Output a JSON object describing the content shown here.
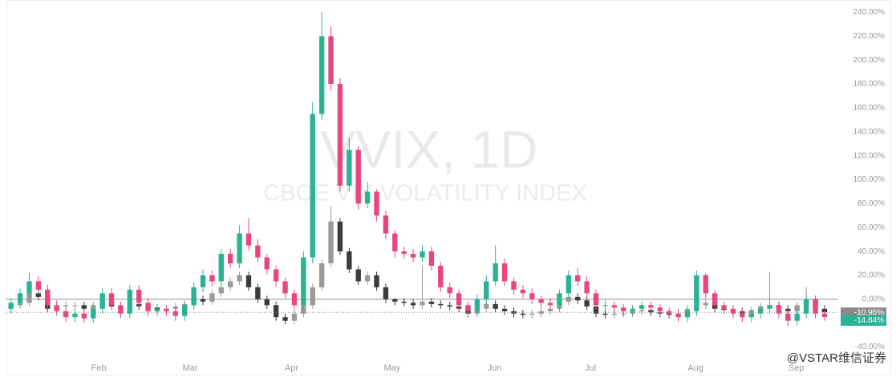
{
  "chart_data": {
    "type": "candlestick",
    "title": "VVIX, 1D",
    "subtitle": "CBOE VIX VOLATILITY INDEX",
    "watermark": "@VSTAR维信证券",
    "ylim": [
      -51,
      247
    ],
    "xlim": [
      -0.5,
      90.5
    ],
    "baseline": 0,
    "yticks": [
      {
        "value": -40,
        "label": "-40.00%"
      },
      {
        "value": -20,
        "label": "-20.00%"
      },
      {
        "value": 0,
        "label": "0.00%"
      },
      {
        "value": 20,
        "label": "20.00%"
      },
      {
        "value": 40,
        "label": "40.00%"
      },
      {
        "value": 60,
        "label": "60.00%"
      },
      {
        "value": 80,
        "label": "80.00%"
      },
      {
        "value": 100,
        "label": "100.00%"
      },
      {
        "value": 120,
        "label": "120.00%"
      },
      {
        "value": 140,
        "label": "140.00%"
      },
      {
        "value": 160,
        "label": "160.00%"
      },
      {
        "value": 180,
        "label": "180.00%"
      },
      {
        "value": 200,
        "label": "200.00%"
      },
      {
        "value": 220,
        "label": "220.00%"
      },
      {
        "value": 240,
        "label": "240.00%"
      }
    ],
    "xticks": [
      {
        "value": 9.6,
        "label": "Feb"
      },
      {
        "value": 19.6,
        "label": "Mar"
      },
      {
        "value": 30.7,
        "label": "Apr"
      },
      {
        "value": 41.7,
        "label": "May"
      },
      {
        "value": 52.9,
        "label": "Jun"
      },
      {
        "value": 63.4,
        "label": "Jul"
      },
      {
        "value": 74.9,
        "label": "Aug"
      },
      {
        "value": 85.9,
        "label": "Sep"
      }
    ],
    "series": [
      {
        "up_color": "#9a9a9a",
        "down_color": "#3b3b3b",
        "label_color": "#8a8a8a",
        "last_label": "-10.96%",
        "open": [
          -8,
          -5,
          -3,
          5,
          2,
          -8,
          -6,
          -5,
          -5,
          -8,
          -5,
          -2,
          -6,
          -8,
          -4,
          -6,
          -7,
          -10,
          -8,
          -6,
          -4,
          0,
          -2,
          5,
          10,
          15,
          20,
          10,
          0,
          -5,
          -15,
          -18,
          -12,
          -5,
          10,
          30,
          65,
          40,
          25,
          15,
          20,
          10,
          0,
          -2,
          -3,
          -5,
          -2,
          -4,
          -5,
          -6,
          -8,
          -12,
          -8,
          -4,
          -8,
          -10,
          -12,
          -13,
          -12,
          -10,
          -8,
          -2,
          2,
          -1,
          -6,
          -12,
          -13,
          -12,
          -12,
          -10,
          -9,
          -11,
          -12,
          -13,
          -12,
          -8,
          -5,
          -3,
          -8,
          -9,
          -10,
          -12,
          -9,
          -6,
          -5,
          -8,
          -10,
          -5,
          0,
          -8
        ],
        "high": [
          -2,
          0,
          8,
          8,
          5,
          -3,
          -2,
          -2,
          -2,
          -2,
          1,
          1,
          -3,
          -1,
          -1,
          -3,
          -4,
          -5,
          -3,
          -1,
          3,
          3,
          8,
          13,
          18,
          23,
          23,
          13,
          3,
          -2,
          -12,
          -9,
          -2,
          13,
          33,
          78,
          68,
          43,
          28,
          23,
          23,
          13,
          1,
          1,
          0,
          28,
          1,
          -1,
          -2,
          -3,
          -5,
          -5,
          -1,
          -1,
          -5,
          -7,
          -9,
          -9,
          -7,
          -5,
          1,
          5,
          5,
          2,
          -3,
          -9,
          -9,
          -9,
          -7,
          -6,
          -6,
          -8,
          -9,
          -9,
          -5,
          -2,
          0,
          0,
          -5,
          -6,
          -7,
          -6,
          -3,
          23,
          -2,
          -5,
          -2,
          10,
          3,
          -5
        ],
        "low": [
          -11,
          -8,
          -6,
          -1,
          -11,
          -11,
          -9,
          -8,
          -11,
          -11,
          -8,
          -9,
          -11,
          -11,
          -9,
          -10,
          -13,
          -13,
          -11,
          -9,
          -7,
          -5,
          -5,
          2,
          7,
          12,
          7,
          -3,
          -8,
          -18,
          -21,
          -21,
          -15,
          -8,
          7,
          27,
          37,
          22,
          12,
          12,
          7,
          -3,
          -5,
          -6,
          -8,
          -8,
          -7,
          -8,
          -9,
          -11,
          -15,
          -15,
          -11,
          -11,
          -13,
          -15,
          -16,
          -16,
          -15,
          -13,
          -11,
          -5,
          -4,
          -9,
          -15,
          -16,
          -16,
          -15,
          -15,
          -13,
          -14,
          -15,
          -16,
          -16,
          -15,
          -11,
          -8,
          -11,
          -12,
          -13,
          -15,
          -15,
          -12,
          -9,
          -11,
          -13,
          -13,
          -8,
          -11,
          -14
        ],
        "close": [
          -5,
          -3,
          5,
          2,
          -8,
          -6,
          -5,
          -5,
          -8,
          -5,
          -2,
          -6,
          -8,
          -4,
          -6,
          -7,
          -10,
          -8,
          -6,
          -4,
          0,
          -2,
          5,
          10,
          15,
          20,
          10,
          0,
          -5,
          -15,
          -18,
          -12,
          -5,
          10,
          30,
          65,
          40,
          25,
          15,
          20,
          10,
          0,
          -2,
          -3,
          -5,
          -2,
          -4,
          -5,
          -6,
          -8,
          -12,
          -8,
          -4,
          -8,
          -10,
          -12,
          -13,
          -12,
          -10,
          -8,
          -2,
          2,
          -1,
          -6,
          -12,
          -13,
          -12,
          -12,
          -10,
          -9,
          -11,
          -12,
          -13,
          -12,
          -8,
          -5,
          -3,
          -8,
          -9,
          -10,
          -12,
          -9,
          -6,
          -5,
          -8,
          -10,
          -5,
          0,
          -8,
          -10.96
        ]
      },
      {
        "up_color": "#2ab393",
        "down_color": "#e8467c",
        "label_color": "#2ab393",
        "last_label": "-14.84%",
        "open": [
          -8,
          -3,
          5,
          15,
          8,
          -5,
          -10,
          -15,
          -12,
          -16,
          -8,
          5,
          -5,
          -12,
          8,
          -3,
          -10,
          -8,
          -10,
          -14,
          -5,
          10,
          20,
          15,
          38,
          30,
          55,
          45,
          35,
          25,
          15,
          5,
          -5,
          35,
          155,
          220,
          180,
          95,
          125,
          80,
          90,
          70,
          55,
          40,
          38,
          35,
          40,
          28,
          10,
          5,
          -5,
          -10,
          0,
          15,
          30,
          15,
          8,
          5,
          0,
          -3,
          -5,
          5,
          20,
          15,
          5,
          -5,
          -5,
          -7,
          -10,
          -8,
          -5,
          -7,
          -10,
          -12,
          -15,
          -10,
          20,
          5,
          -5,
          -8,
          -12,
          -15,
          -12,
          -8,
          -5,
          -12,
          -18,
          -12,
          0,
          -12
        ],
        "high": [
          1,
          9,
          22,
          19,
          12,
          -1,
          -6,
          -8,
          -9,
          -4,
          9,
          9,
          -2,
          12,
          12,
          1,
          -4,
          -5,
          -7,
          -2,
          14,
          25,
          24,
          42,
          42,
          62,
          68,
          50,
          38,
          28,
          18,
          8,
          40,
          165,
          240,
          228,
          185,
          135,
          128,
          98,
          92,
          74,
          58,
          44,
          42,
          45,
          44,
          31,
          14,
          8,
          -2,
          4,
          20,
          45,
          34,
          18,
          12,
          9,
          3,
          1,
          8,
          24,
          26,
          19,
          8,
          -1,
          -2,
          -4,
          -5,
          -2,
          -2,
          -4,
          -7,
          -8,
          -6,
          24,
          22,
          8,
          -2,
          -5,
          -8,
          -9,
          -5,
          -2,
          -3,
          -9,
          -8,
          4,
          3,
          -9
        ],
        "low": [
          -12,
          -7,
          1,
          4,
          -9,
          -14,
          -19,
          -19,
          -20,
          -20,
          -12,
          -9,
          -16,
          -16,
          -7,
          -14,
          -14,
          -14,
          -18,
          -18,
          -9,
          6,
          11,
          11,
          26,
          26,
          41,
          31,
          21,
          11,
          1,
          -9,
          -9,
          30,
          150,
          175,
          90,
          90,
          75,
          76,
          65,
          50,
          35,
          34,
          31,
          31,
          24,
          6,
          1,
          -9,
          -14,
          -14,
          -4,
          11,
          11,
          4,
          1,
          -4,
          -7,
          -9,
          -9,
          1,
          11,
          1,
          -9,
          -9,
          -11,
          -14,
          -14,
          -12,
          -11,
          -14,
          -16,
          -19,
          -19,
          -14,
          1,
          -9,
          -12,
          -16,
          -19,
          -19,
          -16,
          -12,
          -16,
          -22,
          -22,
          -16,
          -16,
          -18
        ],
        "close": [
          -3,
          5,
          15,
          8,
          -5,
          -10,
          -15,
          -12,
          -16,
          -8,
          5,
          -5,
          -12,
          8,
          -3,
          -10,
          -8,
          -10,
          -14,
          -5,
          10,
          20,
          15,
          38,
          30,
          55,
          45,
          35,
          25,
          15,
          5,
          -5,
          35,
          155,
          220,
          180,
          95,
          125,
          80,
          90,
          70,
          55,
          40,
          38,
          35,
          40,
          28,
          10,
          5,
          -5,
          -10,
          0,
          15,
          30,
          15,
          8,
          5,
          0,
          -3,
          -5,
          5,
          20,
          15,
          5,
          -5,
          -5,
          -7,
          -10,
          -8,
          -5,
          -7,
          -10,
          -12,
          -15,
          -10,
          20,
          5,
          -5,
          -8,
          -12,
          -15,
          -12,
          -8,
          -5,
          -12,
          -18,
          -12,
          0,
          -12,
          -14.84
        ]
      }
    ]
  }
}
